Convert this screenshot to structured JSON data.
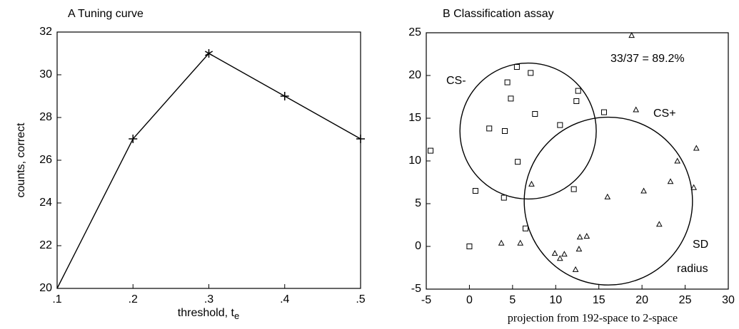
{
  "chart_data": [
    {
      "type": "line",
      "title": "A  Tuning curve",
      "xlabel": "threshold, t",
      "xlabel_subscript": "e",
      "ylabel": "counts, correct",
      "x": [
        0.1,
        0.2,
        0.3,
        0.4,
        0.5
      ],
      "y": [
        20,
        27,
        31,
        29,
        27
      ],
      "markers": [
        "none",
        "+",
        "*",
        "+",
        "+"
      ],
      "color": "#000000",
      "xlim": [
        0.1,
        0.5
      ],
      "xticks": [
        {
          "value": 0.1,
          "label": ".1"
        },
        {
          "value": 0.2,
          "label": ".2"
        },
        {
          "value": 0.3,
          "label": ".3"
        },
        {
          "value": 0.4,
          "label": ".4"
        },
        {
          "value": 0.5,
          "label": ".5"
        }
      ],
      "ylim": [
        20,
        32
      ],
      "yticks": [
        20,
        22,
        24,
        26,
        28,
        30,
        32
      ]
    },
    {
      "type": "scatter",
      "title": "B  Classification assay",
      "xlabel": "projection from 192-space to 2-space",
      "xlim": [
        -5,
        30
      ],
      "xticks": [
        -5,
        0,
        5,
        10,
        15,
        20,
        25,
        30
      ],
      "ylim": [
        -5,
        25
      ],
      "yticks": [
        -5,
        0,
        5,
        10,
        15,
        20,
        25
      ],
      "series": [
        {
          "marker": "square",
          "color": "#000000",
          "x": [
            5.5,
            7.1,
            4.4,
            4.8,
            7.6,
            12.4,
            12.6,
            10.5,
            2.3,
            4.1,
            5.6,
            4.0,
            0.7,
            -4.5,
            0,
            12.1,
            15.6,
            6.5
          ],
          "y": [
            21.0,
            20.3,
            19.2,
            17.3,
            15.5,
            17.0,
            18.2,
            14.2,
            13.8,
            13.5,
            9.9,
            5.7,
            6.5,
            11.2,
            0,
            6.7,
            15.7,
            2.1
          ]
        },
        {
          "marker": "triangle",
          "color": "#000000",
          "x": [
            18.8,
            19.3,
            26.3,
            24.1,
            7.2,
            16.0,
            20.2,
            23.3,
            26.0,
            22.0,
            3.7,
            5.9,
            12.8,
            13.6,
            12.7,
            9.9,
            11.0,
            10.5,
            12.3
          ],
          "y": [
            24.7,
            16.0,
            11.5,
            10.0,
            7.3,
            5.8,
            6.5,
            7.6,
            6.9,
            2.6,
            0.4,
            0.4,
            1.1,
            1.2,
            -0.3,
            -0.8,
            -0.9,
            -1.4,
            -2.7
          ]
        }
      ],
      "circles": [
        {
          "cx": 6.8,
          "cy": 13.5,
          "r": 7.9
        },
        {
          "cx": 16.1,
          "cy": 5.3,
          "r": 9.75
        }
      ],
      "annotations": [
        "33/37 = 89.2%",
        "CS-",
        "CS+",
        "SD",
        "radius"
      ]
    }
  ]
}
